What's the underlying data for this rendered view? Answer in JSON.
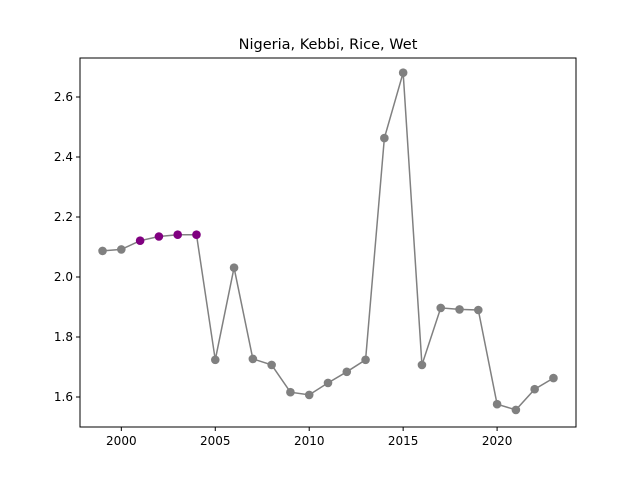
{
  "chart_data": {
    "type": "line",
    "title": "Nigeria, Kebbi, Rice, Wet",
    "xlabel": "",
    "ylabel": "",
    "xlim": [
      1997.8,
      2024.2
    ],
    "ylim": [
      1.5,
      2.73
    ],
    "grid": false,
    "x_ticks": [
      2000,
      2005,
      2010,
      2015,
      2020
    ],
    "y_ticks": [
      1.6,
      1.8,
      2.0,
      2.2,
      2.4,
      2.6
    ],
    "x_tick_labels": [
      "2000",
      "2005",
      "2010",
      "2015",
      "2020"
    ],
    "y_tick_labels": [
      "1.6",
      "1.8",
      "2.0",
      "2.2",
      "2.4",
      "2.6"
    ],
    "line_color": "#808080",
    "marker_color": "#808080",
    "highlight_color": "#800080",
    "highlight_years": [
      2001,
      2002,
      2003,
      2004
    ],
    "x": [
      1999,
      2000,
      2001,
      2002,
      2003,
      2004,
      2005,
      2006,
      2007,
      2008,
      2009,
      2010,
      2011,
      2012,
      2013,
      2014,
      2015,
      2016,
      2017,
      2018,
      2019,
      2020,
      2021,
      2022,
      2023
    ],
    "y": [
      2.087,
      2.092,
      2.121,
      2.135,
      2.141,
      2.141,
      1.724,
      2.031,
      1.727,
      1.707,
      1.616,
      1.607,
      1.647,
      1.684,
      1.724,
      2.463,
      2.681,
      1.707,
      1.897,
      1.892,
      1.89,
      1.576,
      1.557,
      1.626,
      1.663
    ]
  }
}
